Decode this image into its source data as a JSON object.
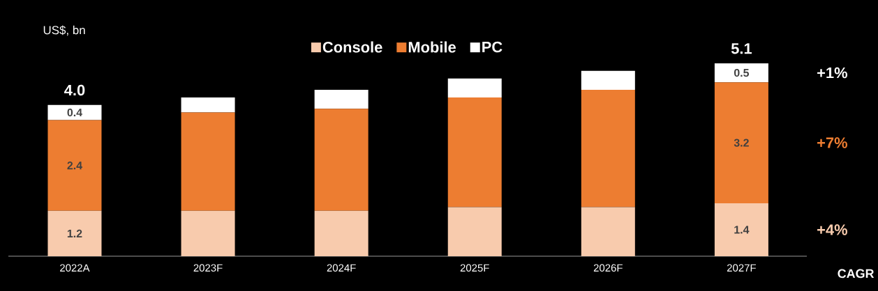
{
  "chart_data": {
    "type": "bar",
    "stacked": true,
    "ylabel": "US$, bn",
    "categories": [
      "2022A",
      "2023F",
      "2024F",
      "2025F",
      "2026F",
      "2027F"
    ],
    "series": [
      {
        "name": "Console",
        "color": "#f8cbad",
        "values": [
          1.2,
          1.2,
          1.2,
          1.3,
          1.3,
          1.4
        ],
        "value_labels": [
          "1.2",
          null,
          null,
          null,
          null,
          "1.4"
        ]
      },
      {
        "name": "Mobile",
        "color": "#ed7d31",
        "values": [
          2.4,
          2.6,
          2.7,
          2.9,
          3.1,
          3.2
        ],
        "value_labels": [
          "2.4",
          null,
          null,
          null,
          null,
          "3.2"
        ]
      },
      {
        "name": "PC",
        "color": "#ffffff",
        "values": [
          0.4,
          0.4,
          0.5,
          0.5,
          0.5,
          0.5
        ],
        "value_labels": [
          "0.4",
          null,
          null,
          null,
          null,
          "0.5"
        ]
      }
    ],
    "totals": [
      "4.0",
      null,
      null,
      null,
      null,
      "5.1"
    ],
    "tick_labels": "x",
    "legend": "top",
    "grid": false,
    "annotations": [
      "+1%",
      "+7%",
      "+4%",
      "CAGR"
    ]
  }
}
